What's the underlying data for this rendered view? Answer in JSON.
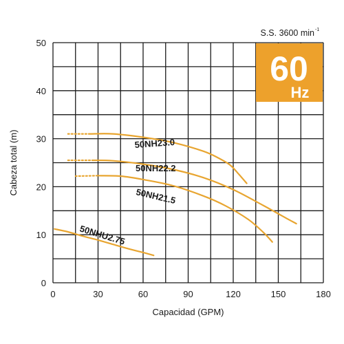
{
  "chart_data": {
    "type": "line",
    "speed_label": "S.S. 3600 min",
    "speed_superscript": "-1",
    "frequency_value": "60",
    "frequency_unit": "Hz",
    "xlabel": "Capacidad (GPM)",
    "ylabel": "Cabeza total (m)",
    "xlim": [
      0,
      180
    ],
    "ylim": [
      0,
      50
    ],
    "x_ticks": [
      0,
      30,
      60,
      90,
      120,
      150,
      180
    ],
    "y_ticks": [
      0,
      10,
      20,
      30,
      40,
      50
    ],
    "grid": true,
    "x_grid_step": 15,
    "y_grid_step": 5,
    "colors": {
      "curve": "#e8a530",
      "badge": "#eda12c",
      "grid": "#1a1a1a",
      "text": "#1a1a1a"
    },
    "series": [
      {
        "name": "50NH23.0",
        "dotted": [
          [
            10,
            31.0
          ],
          [
            25,
            31.0
          ]
        ],
        "values": [
          [
            25,
            31.0
          ],
          [
            40,
            31.0
          ],
          [
            60,
            30.3
          ],
          [
            80,
            29.2
          ],
          [
            100,
            27.4
          ],
          [
            110,
            26.0
          ],
          [
            118,
            24.5
          ],
          [
            124,
            22.5
          ],
          [
            129,
            20.7
          ]
        ]
      },
      {
        "name": "50NH22.2",
        "dotted": [
          [
            10,
            25.5
          ],
          [
            27,
            25.5
          ]
        ],
        "values": [
          [
            27,
            25.5
          ],
          [
            40,
            25.4
          ],
          [
            60,
            24.7
          ],
          [
            80,
            23.6
          ],
          [
            100,
            21.9
          ],
          [
            120,
            19.4
          ],
          [
            140,
            16.1
          ],
          [
            155,
            13.5
          ],
          [
            162,
            12.3
          ]
        ]
      },
      {
        "name": "50NH21.5",
        "dotted": [
          [
            15,
            22.2
          ],
          [
            30,
            22.3
          ]
        ],
        "values": [
          [
            30,
            22.3
          ],
          [
            45,
            22.2
          ],
          [
            60,
            21.5
          ],
          [
            80,
            20.2
          ],
          [
            100,
            18.1
          ],
          [
            115,
            16.0
          ],
          [
            130,
            13.2
          ],
          [
            140,
            10.5
          ],
          [
            146,
            8.5
          ]
        ]
      },
      {
        "name": "50NHU2.75",
        "dotted": [],
        "values": [
          [
            1,
            11.2
          ],
          [
            10,
            10.6
          ],
          [
            20,
            9.7
          ],
          [
            30,
            8.9
          ],
          [
            40,
            8.0
          ],
          [
            50,
            7.1
          ],
          [
            60,
            6.3
          ],
          [
            67,
            5.7
          ]
        ]
      }
    ]
  }
}
